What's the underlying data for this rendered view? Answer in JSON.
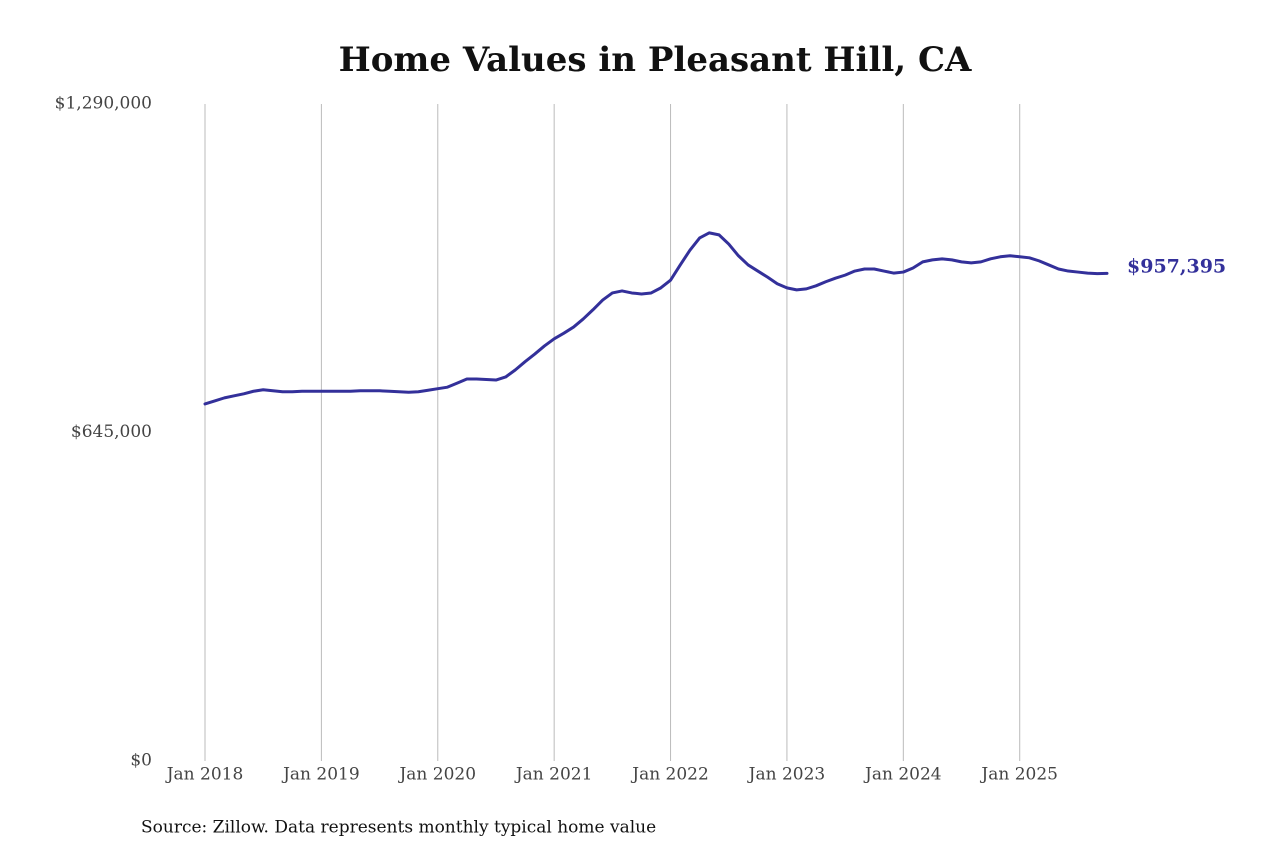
{
  "chart_data": {
    "type": "line",
    "title": "Home Values in Pleasant Hill, CA",
    "source": "Source: Zillow. Data represents monthly typical home value",
    "x": [
      "2018-01",
      "2018-02",
      "2018-03",
      "2018-04",
      "2018-05",
      "2018-06",
      "2018-07",
      "2018-08",
      "2018-09",
      "2018-10",
      "2018-11",
      "2018-12",
      "2019-01",
      "2019-02",
      "2019-03",
      "2019-04",
      "2019-05",
      "2019-06",
      "2019-07",
      "2019-08",
      "2019-09",
      "2019-10",
      "2019-11",
      "2019-12",
      "2020-01",
      "2020-02",
      "2020-03",
      "2020-04",
      "2020-05",
      "2020-06",
      "2020-07",
      "2020-08",
      "2020-09",
      "2020-10",
      "2020-11",
      "2020-12",
      "2021-01",
      "2021-02",
      "2021-03",
      "2021-04",
      "2021-05",
      "2021-06",
      "2021-07",
      "2021-08",
      "2021-09",
      "2021-10",
      "2021-11",
      "2021-12",
      "2022-01",
      "2022-02",
      "2022-03",
      "2022-04",
      "2022-05",
      "2022-06",
      "2022-07",
      "2022-08",
      "2022-09",
      "2022-10",
      "2022-11",
      "2022-12",
      "2023-01",
      "2023-02",
      "2023-03",
      "2023-04",
      "2023-05",
      "2023-06",
      "2023-07",
      "2023-08",
      "2023-09",
      "2023-10",
      "2023-11",
      "2023-12",
      "2024-01",
      "2024-02",
      "2024-03",
      "2024-04",
      "2024-05",
      "2024-06",
      "2024-07",
      "2024-08",
      "2024-09",
      "2024-10",
      "2024-11",
      "2024-12",
      "2025-01",
      "2025-02",
      "2025-03",
      "2025-04",
      "2025-05",
      "2025-06",
      "2025-07",
      "2025-08",
      "2025-09",
      "2025-10"
    ],
    "series": [
      {
        "name": "Home value",
        "color": "#33309a",
        "values": [
          701000,
          707000,
          713000,
          717000,
          721000,
          726000,
          729000,
          727000,
          725000,
          725000,
          726000,
          726000,
          726000,
          726000,
          726000,
          726000,
          727000,
          727000,
          727000,
          726000,
          725000,
          724000,
          725000,
          728000,
          731000,
          734000,
          742000,
          750000,
          750000,
          749000,
          748000,
          754000,
          768000,
          784000,
          799000,
          815000,
          829000,
          840000,
          852000,
          868000,
          886000,
          905000,
          919000,
          923000,
          919000,
          917000,
          919000,
          929000,
          944000,
          974000,
          1003000,
          1027000,
          1037000,
          1033000,
          1015000,
          992000,
          974000,
          962000,
          950000,
          937000,
          929000,
          925000,
          927000,
          933000,
          941000,
          948000,
          954000,
          962000,
          966000,
          966000,
          962000,
          958000,
          960000,
          968000,
          980000,
          984000,
          986000,
          984000,
          980000,
          978000,
          980000,
          986000,
          990000,
          992000,
          990000,
          988000,
          982000,
          974000,
          966000,
          962000,
          960000,
          958000,
          957000,
          957395
        ],
        "value_labels": [
          null,
          null,
          null,
          null,
          null,
          null,
          null,
          null,
          null,
          null,
          null,
          null,
          null,
          null,
          null,
          null,
          null,
          null,
          null,
          null,
          null,
          null,
          null,
          null,
          null,
          null,
          null,
          null,
          null,
          null,
          null,
          null,
          null,
          null,
          null,
          null,
          null,
          null,
          null,
          null,
          null,
          null,
          null,
          null,
          null,
          null,
          null,
          null,
          null,
          null,
          null,
          null,
          null,
          null,
          null,
          null,
          null,
          null,
          null,
          null,
          null,
          null,
          null,
          null,
          null,
          null,
          null,
          null,
          null,
          null,
          null,
          null,
          null,
          null,
          null,
          null,
          null,
          null,
          null,
          null,
          null,
          null,
          null,
          null,
          null,
          null,
          null,
          null,
          null,
          null,
          null,
          null,
          null,
          "$957,395"
        ]
      }
    ],
    "xlim": [
      "2018-01",
      "2025-10"
    ],
    "xticks": [
      {
        "value": "2018-01",
        "label": "Jan 2018"
      },
      {
        "value": "2019-01",
        "label": "Jan 2019"
      },
      {
        "value": "2020-01",
        "label": "Jan 2020"
      },
      {
        "value": "2021-01",
        "label": "Jan 2021"
      },
      {
        "value": "2022-01",
        "label": "Jan 2022"
      },
      {
        "value": "2023-01",
        "label": "Jan 2023"
      },
      {
        "value": "2024-01",
        "label": "Jan 2024"
      },
      {
        "value": "2025-01",
        "label": "Jan 2025"
      }
    ],
    "ylim": [
      0,
      1290000
    ],
    "yticks": [
      {
        "value": 0,
        "label": "$0"
      },
      {
        "value": 645000,
        "label": "$645,000"
      },
      {
        "value": 1290000,
        "label": "$1,290,000"
      }
    ],
    "grid": "x"
  }
}
